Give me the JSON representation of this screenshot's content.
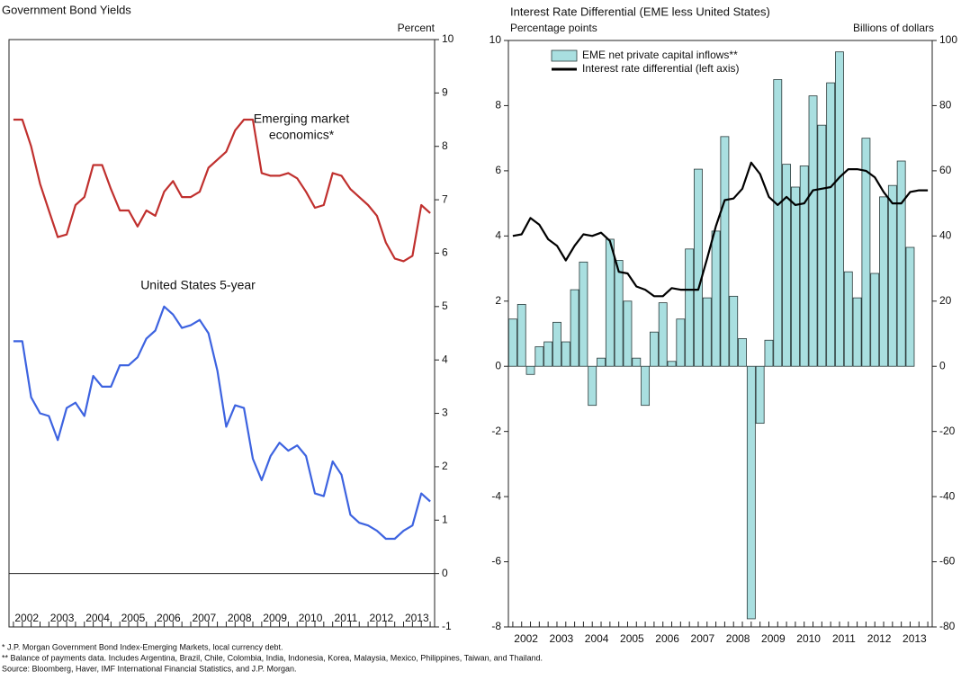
{
  "chart_data": [
    {
      "type": "line",
      "title": "Government Bond Yields",
      "y_axis_label": "Percent",
      "x": [
        2002.125,
        2002.375,
        2002.625,
        2002.875,
        2003.125,
        2003.375,
        2003.625,
        2003.875,
        2004.125,
        2004.375,
        2004.625,
        2004.875,
        2005.125,
        2005.375,
        2005.625,
        2005.875,
        2006.125,
        2006.375,
        2006.625,
        2006.875,
        2007.125,
        2007.375,
        2007.625,
        2007.875,
        2008.125,
        2008.375,
        2008.625,
        2008.875,
        2009.125,
        2009.375,
        2009.625,
        2009.875,
        2010.125,
        2010.375,
        2010.625,
        2010.875,
        2011.125,
        2011.375,
        2011.625,
        2011.875,
        2012.125,
        2012.375,
        2012.625,
        2012.875,
        2013.125,
        2013.375,
        2013.625,
        2013.875
      ],
      "xlim": [
        2002,
        2014
      ],
      "xticks": [
        {
          "value": 2002.5,
          "label": "2002"
        },
        {
          "value": 2003.5,
          "label": "2003"
        },
        {
          "value": 2004.5,
          "label": "2004"
        },
        {
          "value": 2005.5,
          "label": "2005"
        },
        {
          "value": 2006.5,
          "label": "2006"
        },
        {
          "value": 2007.5,
          "label": "2007"
        },
        {
          "value": 2008.5,
          "label": "2008"
        },
        {
          "value": 2009.5,
          "label": "2009"
        },
        {
          "value": 2010.5,
          "label": "2010"
        },
        {
          "value": 2011.5,
          "label": "2011"
        },
        {
          "value": 2012.5,
          "label": "2012"
        },
        {
          "value": 2013.5,
          "label": "2013"
        }
      ],
      "ylim": [
        -1,
        10
      ],
      "yticks": [
        -1,
        0,
        1,
        2,
        3,
        4,
        5,
        6,
        7,
        8,
        9,
        10
      ],
      "zero_line": true,
      "series": [
        {
          "label_lines": [
            "Emerging market",
            "economics*"
          ],
          "color": "#c0302e",
          "values": [
            8.5,
            8.5,
            8.0,
            7.3,
            6.8,
            6.3,
            6.35,
            6.9,
            7.05,
            7.65,
            7.65,
            7.2,
            6.8,
            6.8,
            6.5,
            6.8,
            6.7,
            7.15,
            7.35,
            7.05,
            7.05,
            7.15,
            7.6,
            7.75,
            7.9,
            8.3,
            8.5,
            8.5,
            7.5,
            7.45,
            7.45,
            7.5,
            7.4,
            7.15,
            6.85,
            6.9,
            7.5,
            7.45,
            7.2,
            7.05,
            6.9,
            6.7,
            6.2,
            5.9,
            5.85,
            5.95,
            6.9,
            6.75
          ]
        },
        {
          "label_lines": [
            "United States 5-year"
          ],
          "color": "#3d63e0",
          "values": [
            4.35,
            4.35,
            3.3,
            3.0,
            2.95,
            2.5,
            3.1,
            3.2,
            2.95,
            3.7,
            3.5,
            3.5,
            3.9,
            3.9,
            4.05,
            4.4,
            4.55,
            5.0,
            4.85,
            4.6,
            4.65,
            4.75,
            4.5,
            3.8,
            2.75,
            3.15,
            3.1,
            2.15,
            1.75,
            2.2,
            2.45,
            2.3,
            2.4,
            2.2,
            1.5,
            1.45,
            2.1,
            1.85,
            1.1,
            0.95,
            0.9,
            0.8,
            0.65,
            0.65,
            0.8,
            0.9,
            1.5,
            1.35
          ]
        }
      ]
    },
    {
      "type": "bar_line",
      "title": "Interest Rate Differential (EME less United States)",
      "y_axis_label": "Percentage points",
      "y2_axis_label": "Billions of dollars",
      "x": [
        2002.125,
        2002.375,
        2002.625,
        2002.875,
        2003.125,
        2003.375,
        2003.625,
        2003.875,
        2004.125,
        2004.375,
        2004.625,
        2004.875,
        2005.125,
        2005.375,
        2005.625,
        2005.875,
        2006.125,
        2006.375,
        2006.625,
        2006.875,
        2007.125,
        2007.375,
        2007.625,
        2007.875,
        2008.125,
        2008.375,
        2008.625,
        2008.875,
        2009.125,
        2009.375,
        2009.625,
        2009.875,
        2010.125,
        2010.375,
        2010.625,
        2010.875,
        2011.125,
        2011.375,
        2011.625,
        2011.875,
        2012.125,
        2012.375,
        2012.625,
        2012.875,
        2013.125,
        2013.375,
        2013.625,
        2013.875
      ],
      "xlim": [
        2002,
        2014
      ],
      "xticks": [
        {
          "value": 2002.5,
          "label": "2002"
        },
        {
          "value": 2003.5,
          "label": "2003"
        },
        {
          "value": 2004.5,
          "label": "2004"
        },
        {
          "value": 2005.5,
          "label": "2005"
        },
        {
          "value": 2006.5,
          "label": "2006"
        },
        {
          "value": 2007.5,
          "label": "2007"
        },
        {
          "value": 2008.5,
          "label": "2008"
        },
        {
          "value": 2009.5,
          "label": "2009"
        },
        {
          "value": 2010.5,
          "label": "2010"
        },
        {
          "value": 2011.5,
          "label": "2011"
        },
        {
          "value": 2012.5,
          "label": "2012"
        },
        {
          "value": 2013.5,
          "label": "2013"
        }
      ],
      "ylim": [
        -8,
        10
      ],
      "yticks": [
        -8,
        -6,
        -4,
        -2,
        0,
        2,
        4,
        6,
        8,
        10
      ],
      "y2lim": [
        -80,
        100
      ],
      "y2ticks": [
        -80,
        -60,
        -40,
        -20,
        0,
        20,
        40,
        60,
        80,
        100
      ],
      "series": [
        {
          "name": "EME net private capital inflows**",
          "kind": "bar",
          "axis": "y2",
          "color": "#a9dfe0",
          "values": [
            14.5,
            19,
            -2.5,
            6,
            7.5,
            13.5,
            7.5,
            23.5,
            32,
            -12,
            2.5,
            39,
            32.5,
            20,
            2.5,
            -12,
            10.5,
            19.5,
            1.5,
            14.5,
            36,
            60.5,
            21,
            41.5,
            70.5,
            21.5,
            8.5,
            -77.5,
            -17.5,
            8,
            88,
            62,
            55,
            61.5,
            83,
            74,
            87,
            96.5,
            29,
            21,
            70,
            28.5,
            52,
            55.5,
            63,
            36.5,
            null,
            null
          ]
        },
        {
          "name": "Interest rate differential (left axis)",
          "kind": "line",
          "color": "#000000",
          "values": [
            4.0,
            4.05,
            4.55,
            4.35,
            3.9,
            3.7,
            3.25,
            3.7,
            4.05,
            4.0,
            4.1,
            3.85,
            2.9,
            2.85,
            2.45,
            2.35,
            2.15,
            2.15,
            2.4,
            2.35,
            2.35,
            2.35,
            3.3,
            4.3,
            5.1,
            5.15,
            5.45,
            6.25,
            5.9,
            5.2,
            4.95,
            5.2,
            4.95,
            5.0,
            5.4,
            5.45,
            5.5,
            5.8,
            6.05,
            6.05,
            6.0,
            5.8,
            5.35,
            5.0,
            5.0,
            5.35,
            5.4,
            5.4
          ]
        }
      ]
    }
  ],
  "footnotes": [
    "* J.P. Morgan Government Bond Index-Emerging Markets, local currency debt.",
    "** Balance of payments data. Includes Argentina, Brazil, Chile, Colombia, India, Indonesia, Korea, Malaysia, Mexico, Philippines, Taiwan, and Thailand.",
    "Source: Bloomberg, Haver, IMF International Financial Statistics, and J.P. Morgan."
  ]
}
